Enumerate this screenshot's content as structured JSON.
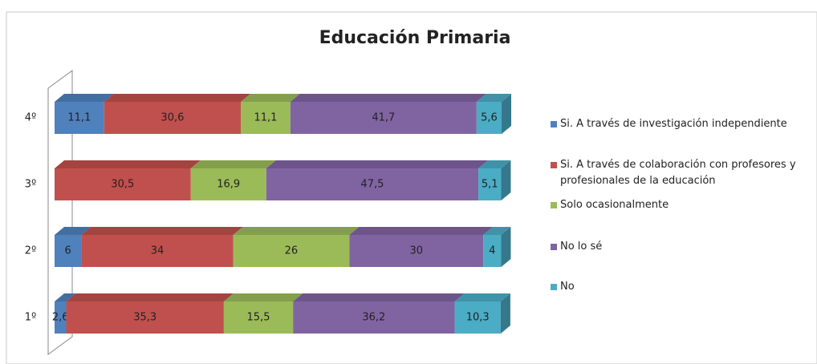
{
  "chart_data": {
    "type": "stacked-bar-horizontal-3d",
    "title": "Educación Primaria",
    "categories": [
      "1º",
      "2º",
      "3º",
      "4º"
    ],
    "series": [
      {
        "name": "Si. A través de investigación independiente",
        "color": "#4f81bd",
        "values": [
          2.6,
          6,
          null,
          11.1
        ],
        "value_labels": [
          "2,6",
          "6",
          null,
          "11,1"
        ]
      },
      {
        "name": "Si. A través de colaboración con profesores y profesionales de la educación",
        "color": "#c0504d",
        "values": [
          35.3,
          34,
          30.5,
          30.6
        ],
        "value_labels": [
          "35,3",
          "34",
          "30,5",
          "30,6"
        ]
      },
      {
        "name": "Solo ocasionalmente",
        "color": "#9bbb59",
        "values": [
          15.5,
          26,
          16.9,
          11.1
        ],
        "value_labels": [
          "15,5",
          "26",
          "16,9",
          "11,1"
        ]
      },
      {
        "name": "No lo sé",
        "color": "#8064a2",
        "values": [
          36.2,
          30,
          47.5,
          41.7
        ],
        "value_labels": [
          "36,2",
          "30",
          "47,5",
          "41,7"
        ]
      },
      {
        "name": "No",
        "color": "#4bacc6",
        "values": [
          10.3,
          4,
          5.1,
          5.6
        ],
        "value_labels": [
          "10,3",
          "4",
          "5,1",
          "5,6"
        ]
      }
    ],
    "legend": "right"
  }
}
